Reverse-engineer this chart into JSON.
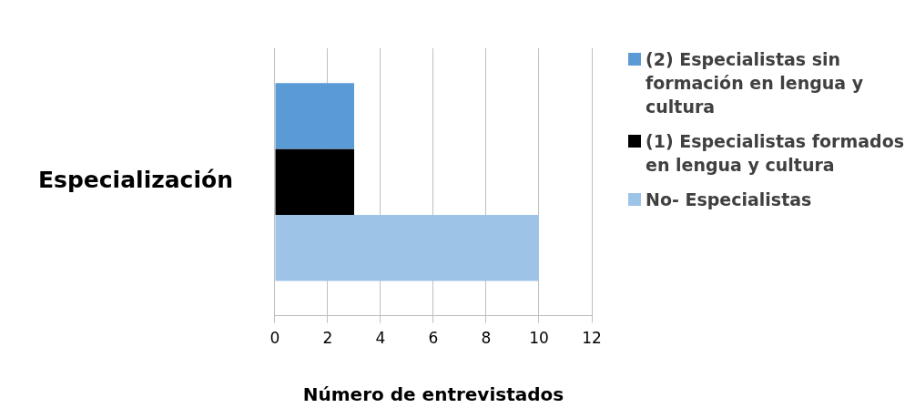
{
  "chart_data": {
    "type": "bar",
    "orientation": "horizontal",
    "categories": [
      "Especialización"
    ],
    "series": [
      {
        "name": "(2) Especialistas sin formación en lengua y cultura",
        "color": "#5b9bd5",
        "values": [
          3
        ]
      },
      {
        "name": "(1) Especialistas formados en lengua y cultura",
        "color": "#000000",
        "values": [
          3
        ]
      },
      {
        "name": "No- Especialistas",
        "color": "#9dc3e6",
        "values": [
          10
        ]
      }
    ],
    "xlabel": "Número de entrevistados",
    "xlim": [
      0,
      12
    ],
    "xticks": [
      0,
      2,
      4,
      6,
      8,
      10,
      12
    ],
    "grid": "x",
    "legend": "right"
  }
}
